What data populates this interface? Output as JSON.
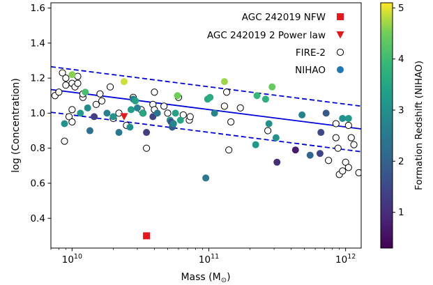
{
  "chart_data": {
    "type": "scatter",
    "xlabel": "Mass (M",
    "xlabel_sub": "⊙",
    "xlabel_close": ")",
    "ylabel": "log (Concentration)",
    "xscale": "log",
    "xlim": [
      7000000000.0,
      1300000000000.0
    ],
    "ylim": [
      0.23,
      1.63
    ],
    "x_ticks": [
      {
        "value": 10000000000.0,
        "base": "10",
        "exp": "10"
      },
      {
        "value": 100000000000.0,
        "base": "10",
        "exp": "11"
      },
      {
        "value": 1000000000000.0,
        "base": "10",
        "exp": "12"
      }
    ],
    "y_ticks": [
      "0.4",
      "0.6",
      "0.8",
      "1.0",
      "1.2",
      "1.4",
      "1.6"
    ],
    "colorbar": {
      "label": "Formation Redshift (NIHAO)",
      "vmin": 0.3,
      "vmax": 5.1,
      "ticks": [
        "1",
        "2",
        "3",
        "4",
        "5"
      ],
      "colormap": "viridis"
    },
    "legend": {
      "placement": "top-right",
      "entries": [
        {
          "label": "AGC 242019 NFW",
          "marker": "square",
          "color": "#e8161b"
        },
        {
          "label": "AGC 242019 2 Power law",
          "marker": "triangle-down",
          "color": "#e8161b"
        },
        {
          "label": "FIRE-2",
          "marker": "open-circle",
          "color": "#000000"
        },
        {
          "label": "NIHAO",
          "marker": "filled-circle",
          "color": "#1f77b4"
        }
      ]
    },
    "fit_line": {
      "x0": 7000000000.0,
      "y0": 1.135,
      "x1": 1300000000000.0,
      "y1": 0.91,
      "color": "#0000dd"
    },
    "upper_band": {
      "x0": 7000000000.0,
      "y0": 1.265,
      "x1": 1300000000000.0,
      "y1": 1.04,
      "color": "#0000dd"
    },
    "lower_band": {
      "x0": 7000000000.0,
      "y0": 1.005,
      "x1": 1300000000000.0,
      "y1": 0.78,
      "color": "#0000dd"
    },
    "agc_nfw": {
      "x": 35000000000.0,
      "y": 0.3
    },
    "agc_2pl": {
      "x": 24000000000.0,
      "y": 0.98
    },
    "fire2_points": [
      [
        7500000000.0,
        1.1
      ],
      [
        8000000000.0,
        1.12
      ],
      [
        8500000000.0,
        1.23
      ],
      [
        8800000000.0,
        0.84
      ],
      [
        9000000000.0,
        1.2
      ],
      [
        9000000000.0,
        1.16
      ],
      [
        9500000000.0,
        0.98
      ],
      [
        10000000000.0,
        1.02
      ],
      [
        10000000000.0,
        0.95
      ],
      [
        10000000000.0,
        1.17
      ],
      [
        10500000000.0,
        1.15
      ],
      [
        11000000000.0,
        1.21
      ],
      [
        11000000000.0,
        1.17
      ],
      [
        12000000000.0,
        1.09
      ],
      [
        12000000000.0,
        1.11
      ],
      [
        15000000000.0,
        1.05
      ],
      [
        16000000000.0,
        1.11
      ],
      [
        16500000000.0,
        1.07
      ],
      [
        19000000000.0,
        1.15
      ],
      [
        20000000000.0,
        0.97
      ],
      [
        22000000000.0,
        1.0
      ],
      [
        25000000000.0,
        0.93
      ],
      [
        28000000000.0,
        1.09
      ],
      [
        32000000000.0,
        1.02
      ],
      [
        33000000000.0,
        1.0
      ],
      [
        35000000000.0,
        0.8
      ],
      [
        39000000000.0,
        1.05
      ],
      [
        40000000000.0,
        1.12
      ],
      [
        40000000000.0,
        1.02
      ],
      [
        47000000000.0,
        1.04
      ],
      [
        50000000000.0,
        1.0
      ],
      [
        55000000000.0,
        0.94
      ],
      [
        60000000000.0,
        1.09
      ],
      [
        65000000000.0,
        0.99
      ],
      [
        72000000000.0,
        0.96
      ],
      [
        73000000000.0,
        0.98
      ],
      [
        130000000000.0,
        1.04
      ],
      [
        135000000000.0,
        1.12
      ],
      [
        140000000000.0,
        0.79
      ],
      [
        145000000000.0,
        0.95
      ],
      [
        170000000000.0,
        1.03
      ],
      [
        270000000000.0,
        0.9
      ],
      [
        750000000000.0,
        0.73
      ],
      [
        850000000000.0,
        0.94
      ],
      [
        850000000000.0,
        0.86
      ],
      [
        880000000000.0,
        0.8
      ],
      [
        900000000000.0,
        0.65
      ],
      [
        950000000000.0,
        0.67
      ],
      [
        1000000000000.0,
        0.72
      ],
      [
        1050000000000.0,
        0.69
      ],
      [
        1100000000000.0,
        0.86
      ],
      [
        1150000000000.0,
        0.82
      ],
      [
        1250000000000.0,
        0.66
      ],
      [
        1050000000000.0,
        0.93
      ]
    ],
    "nihao_points": [
      [
        8800000000.0,
        0.94,
        3.0
      ],
      [
        10000000000.0,
        1.22,
        4.6
      ],
      [
        11500000000.0,
        1.0,
        3.3
      ],
      [
        12500000000.0,
        1.12,
        4.1
      ],
      [
        13000000000.0,
        1.03,
        2.9
      ],
      [
        13500000000.0,
        0.9,
        2.3
      ],
      [
        14500000000.0,
        0.98,
        1.3
      ],
      [
        18000000000.0,
        1.0,
        2.6
      ],
      [
        20000000000.0,
        0.98,
        3.1
      ],
      [
        22000000000.0,
        0.89,
        2.5
      ],
      [
        24000000000.0,
        1.18,
        4.9
      ],
      [
        26500000000.0,
        0.92,
        3.0
      ],
      [
        27000000000.0,
        1.02,
        3.3
      ],
      [
        28000000000.0,
        1.08,
        2.6
      ],
      [
        29000000000.0,
        1.07,
        3.4
      ],
      [
        30000000000.0,
        1.03,
        2.7
      ],
      [
        33000000000.0,
        1.0,
        3.5
      ],
      [
        35000000000.0,
        0.89,
        1.3
      ],
      [
        39000000000.0,
        0.98,
        1.4
      ],
      [
        42000000000.0,
        1.0,
        2.4
      ],
      [
        52000000000.0,
        0.96,
        3.2
      ],
      [
        53000000000.0,
        0.95,
        1.6
      ],
      [
        54000000000.0,
        0.92,
        1.9
      ],
      [
        55000000000.0,
        0.94,
        2.8
      ],
      [
        57000000000.0,
        1.0,
        3.4
      ],
      [
        59000000000.0,
        1.1,
        4.5
      ],
      [
        62000000000.0,
        0.96,
        3.5
      ],
      [
        95000000000.0,
        0.63,
        2.5
      ],
      [
        98000000000.0,
        1.08,
        3.5
      ],
      [
        102000000000.0,
        1.09,
        3.6
      ],
      [
        110000000000.0,
        1.0,
        2.8
      ],
      [
        130000000000.0,
        1.18,
        4.7
      ],
      [
        220000000000.0,
        0.82,
        3.2
      ],
      [
        225000000000.0,
        1.1,
        3.9
      ],
      [
        260000000000.0,
        1.08,
        3.7
      ],
      [
        275000000000.0,
        0.94,
        3.0
      ],
      [
        290000000000.0,
        1.15,
        4.4
      ],
      [
        310000000000.0,
        0.86,
        3.1
      ],
      [
        315000000000.0,
        0.72,
        1.0
      ],
      [
        430000000000.0,
        0.79,
        0.7
      ],
      [
        480000000000.0,
        0.99,
        2.7
      ],
      [
        550000000000.0,
        0.76,
        2.1
      ],
      [
        650000000000.0,
        0.77,
        1.4
      ],
      [
        660000000000.0,
        0.89,
        1.5
      ],
      [
        720000000000.0,
        1.0,
        1.8
      ],
      [
        950000000000.0,
        0.97,
        3.0
      ],
      [
        1050000000000.0,
        0.97,
        3.2
      ]
    ]
  }
}
